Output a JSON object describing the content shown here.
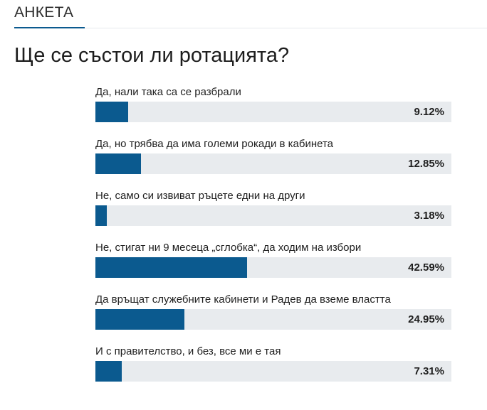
{
  "section": {
    "label": "АНКЕТА"
  },
  "poll": {
    "question": "Ще се състои ли ротацията?",
    "accent_color": "#0b5a8f",
    "track_color": "#e8ebee",
    "options": [
      {
        "label": "Да, нали така са се разбрали",
        "percent": 9.12,
        "percent_text": "9.12%"
      },
      {
        "label": "Да, но трябва да има големи рокади в кабинета",
        "percent": 12.85,
        "percent_text": "12.85%"
      },
      {
        "label": "Не, само си извиват ръцете едни на други",
        "percent": 3.18,
        "percent_text": "3.18%"
      },
      {
        "label": "Не, стигат ни 9 месеца „сглобка“, да ходим на избори",
        "percent": 42.59,
        "percent_text": "42.59%"
      },
      {
        "label": "Да връщат служебните кабинети и Радев да вземе властта",
        "percent": 24.95,
        "percent_text": "24.95%"
      },
      {
        "label": "И с правителство, и без, все ми е тая",
        "percent": 7.31,
        "percent_text": "7.31%"
      }
    ]
  }
}
